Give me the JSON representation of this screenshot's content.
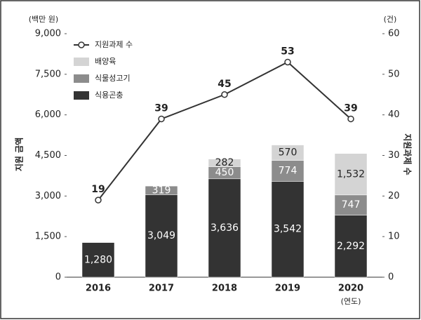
{
  "chart_data": {
    "type": "bar",
    "y_unit": "(백만 원)",
    "y2_unit": "(건)",
    "ylabel": "지원 금액",
    "y2label": "지원과제 수",
    "xlabel": "(연도)",
    "categories": [
      "2016",
      "2017",
      "2018",
      "2019",
      "2020"
    ],
    "series": [
      {
        "name": "식용곤충",
        "type": "bar",
        "color": "#333333",
        "values": [
          1280,
          3049,
          3636,
          3542,
          2292
        ],
        "value_labels": [
          "1,280",
          "3,049",
          "3,636",
          "3,542",
          "2,292"
        ]
      },
      {
        "name": "식물성고기",
        "type": "bar",
        "color": "#8c8c8c",
        "values": [
          null,
          319,
          450,
          774,
          747
        ]
      },
      {
        "name": "배양육",
        "type": "bar",
        "color": "#d4d4d4",
        "values": [
          null,
          null,
          282,
          570,
          1532
        ],
        "value_labels": [
          null,
          null,
          "282",
          "570",
          "1,532"
        ]
      },
      {
        "name": "지원과제 수",
        "type": "line",
        "axis": "y2",
        "color": "#333333",
        "values": [
          19,
          39,
          45,
          53,
          39
        ]
      }
    ],
    "ylim": [
      0,
      9000
    ],
    "yticks": [
      0,
      {
        "value": 1500,
        "label": "1,500"
      },
      {
        "value": 3000,
        "label": "3,000"
      },
      {
        "value": 4500,
        "label": "4,500"
      },
      {
        "value": 6000,
        "label": "6,000"
      },
      {
        "value": 7500,
        "label": "7,500"
      },
      {
        "value": 9000,
        "label": "9,000"
      }
    ],
    "y2lim": [
      0,
      60
    ],
    "y2ticks": [
      0,
      10,
      20,
      30,
      40,
      50,
      60
    ],
    "legend": "upper left"
  }
}
